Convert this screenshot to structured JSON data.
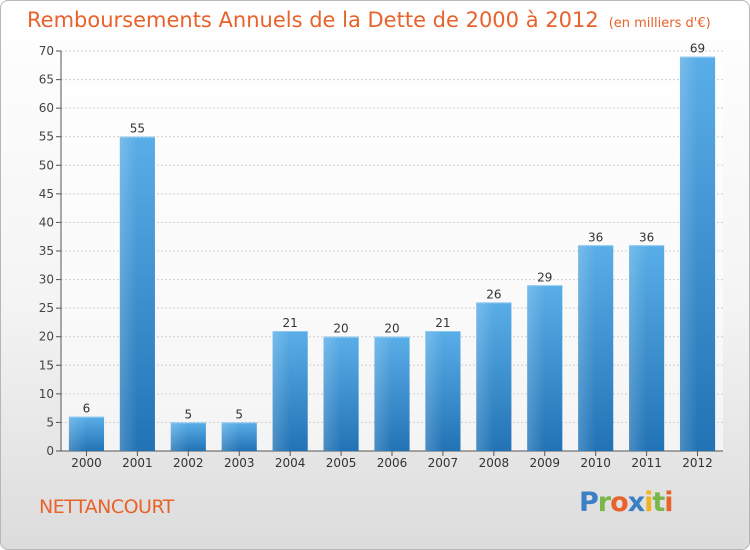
{
  "header": {
    "title": "Remboursements Annuels de la Dette de 2000 à 2012",
    "subtitle": "(en milliers d'€)"
  },
  "commune": "NETTANCOURT",
  "logo": {
    "text": "Proxiti",
    "letters": [
      {
        "ch": "P",
        "color": "#3b7fc4"
      },
      {
        "ch": "r",
        "color": "#7ab648"
      },
      {
        "ch": "o",
        "color": "#e8622a"
      },
      {
        "ch": "x",
        "color": "#3b7fc4"
      },
      {
        "ch": "i",
        "color": "#f0b323"
      },
      {
        "ch": "t",
        "color": "#7ab648"
      },
      {
        "ch": "i",
        "color": "#e8622a"
      }
    ]
  },
  "chart_data": {
    "type": "bar",
    "title": "Remboursements Annuels de la Dette de 2000 à 2012",
    "subtitle": "(en milliers d'€)",
    "categories": [
      "2000",
      "2001",
      "2002",
      "2003",
      "2004",
      "2005",
      "2006",
      "2007",
      "2008",
      "2009",
      "2010",
      "2011",
      "2012"
    ],
    "values": [
      6,
      55,
      5,
      5,
      21,
      20,
      20,
      21,
      26,
      29,
      36,
      36,
      69
    ],
    "ylim": [
      0,
      70
    ],
    "yticks": [
      0,
      5,
      10,
      15,
      20,
      25,
      30,
      35,
      40,
      45,
      50,
      55,
      60,
      65,
      70
    ],
    "grid": true,
    "bar_color_top": "#5aaee8",
    "bar_color_bottom": "#2273b5"
  }
}
